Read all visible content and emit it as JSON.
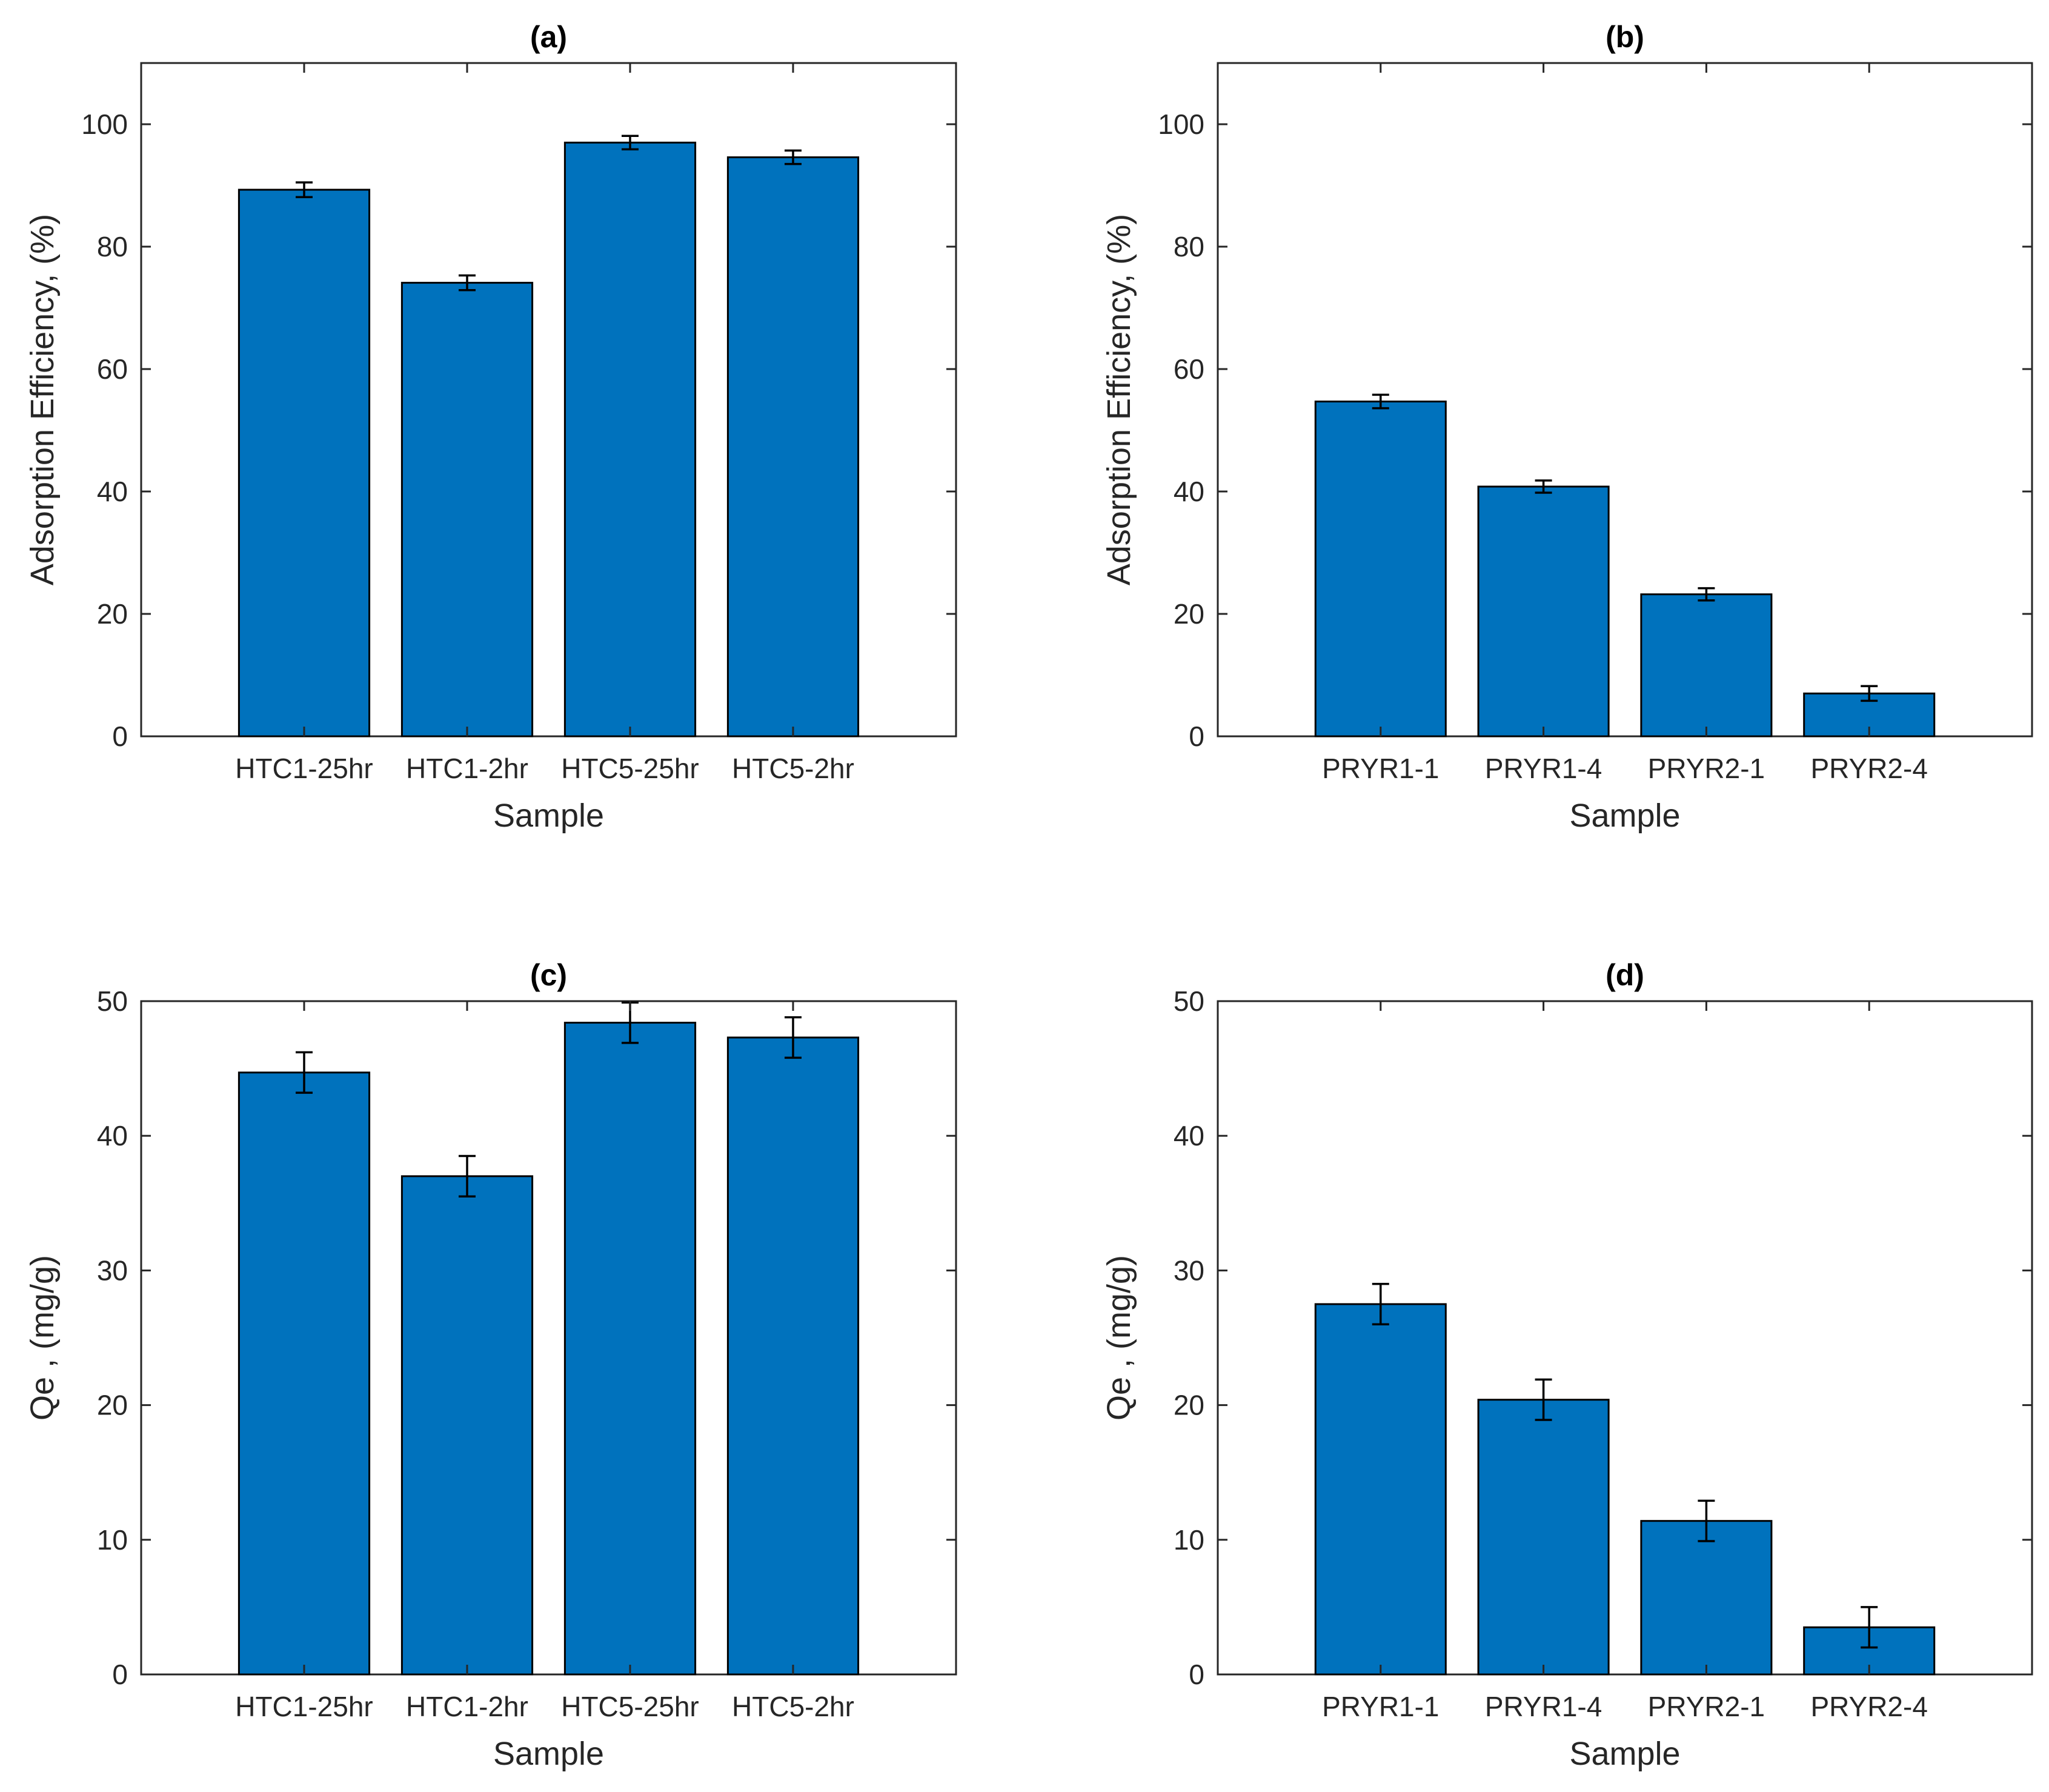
{
  "figure": {
    "bar_color": "#0072BD",
    "edge_color": "#000000",
    "axis_color": "#262626"
  },
  "chart_data": [
    {
      "type": "bar",
      "title": "(a)",
      "xlabel": "Sample",
      "ylabel": "Adsorption Efficiency, (%)",
      "categories": [
        "HTC1-25hr",
        "HTC1-2hr",
        "HTC5-25hr",
        "HTC5-2hr"
      ],
      "values": [
        89.3,
        74.1,
        97.0,
        94.6
      ],
      "errors": [
        1.2,
        1.2,
        1.1,
        1.1
      ],
      "ylim": [
        0,
        110
      ],
      "yticks": [
        0,
        20,
        40,
        60,
        80,
        100
      ],
      "grid": false,
      "legend": "none"
    },
    {
      "type": "bar",
      "title": "(b)",
      "xlabel": "Sample",
      "ylabel": "Adsorption Efficiency, (%)",
      "categories": [
        "PRYR1-1",
        "PRYR1-4",
        "PRYR2-1",
        "PRYR2-4"
      ],
      "values": [
        54.7,
        40.8,
        23.2,
        7.0
      ],
      "errors": [
        1.1,
        1.0,
        1.0,
        1.2
      ],
      "ylim": [
        0,
        110
      ],
      "yticks": [
        0,
        20,
        40,
        60,
        80,
        100
      ],
      "grid": false,
      "legend": "none"
    },
    {
      "type": "bar",
      "title": "(c)",
      "xlabel": "Sample",
      "ylabel": "Qe , (mg/g)",
      "categories": [
        "HTC1-25hr",
        "HTC1-2hr",
        "HTC5-25hr",
        "HTC5-2hr"
      ],
      "values": [
        44.7,
        37.0,
        48.4,
        47.3
      ],
      "errors": [
        1.5,
        1.5,
        1.5,
        1.5
      ],
      "ylim": [
        0,
        50
      ],
      "yticks": [
        0,
        10,
        20,
        30,
        40,
        50
      ],
      "grid": false,
      "legend": "none"
    },
    {
      "type": "bar",
      "title": "(d)",
      "xlabel": "Sample",
      "ylabel": "Qe , (mg/g)",
      "categories": [
        "PRYR1-1",
        "PRYR1-4",
        "PRYR2-1",
        "PRYR2-4"
      ],
      "values": [
        27.5,
        20.4,
        11.4,
        3.5
      ],
      "errors": [
        1.5,
        1.5,
        1.5,
        1.5
      ],
      "ylim": [
        0,
        50
      ],
      "yticks": [
        0,
        10,
        20,
        30,
        40,
        50
      ],
      "grid": false,
      "legend": "none"
    }
  ]
}
